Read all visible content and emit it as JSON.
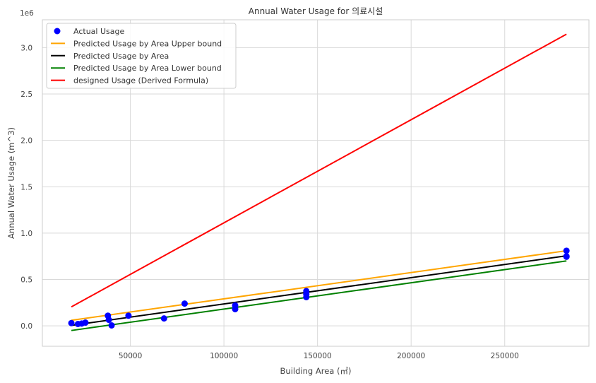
{
  "chart_data": {
    "type": "scatter",
    "title": "Annual Water Usage for 의료시설",
    "xlabel": "Building Area (㎡)",
    "ylabel": "Annual Water Usage (m^3)",
    "y_offset_label": "1e6",
    "xlim": [
      3000,
      295000
    ],
    "ylim": [
      -0.22,
      3.3
    ],
    "x_ticks": [
      50000,
      100000,
      150000,
      200000,
      250000
    ],
    "x_tick_labels": [
      "50000",
      "100000",
      "150000",
      "200000",
      "250000"
    ],
    "y_ticks": [
      0.0,
      0.5,
      1.0,
      1.5,
      2.0,
      2.5,
      3.0
    ],
    "y_tick_labels": [
      "0.0",
      "0.5",
      "1.0",
      "1.5",
      "2.0",
      "2.5",
      "3.0"
    ],
    "grid": true,
    "legend_position": "top-left",
    "series": [
      {
        "name": "Actual Usage",
        "kind": "scatter",
        "color": "#0000ff",
        "points": [
          [
            18500,
            0.03
          ],
          [
            22000,
            0.02
          ],
          [
            24000,
            0.025
          ],
          [
            26000,
            0.035
          ],
          [
            38000,
            0.11
          ],
          [
            38500,
            0.065
          ],
          [
            40000,
            0.005
          ],
          [
            49000,
            0.11
          ],
          [
            68000,
            0.08
          ],
          [
            79000,
            0.24
          ],
          [
            106000,
            0.22
          ],
          [
            106000,
            0.18
          ],
          [
            144000,
            0.375
          ],
          [
            144000,
            0.34
          ],
          [
            144000,
            0.31
          ],
          [
            283000,
            0.81
          ],
          [
            283000,
            0.745
          ],
          [
            283000,
            0.75
          ]
        ]
      },
      {
        "name": "Predicted Usage by Area Upper bound",
        "kind": "line",
        "color": "#ffa500",
        "points": [
          [
            18500,
            0.06
          ],
          [
            283000,
            0.81
          ]
        ]
      },
      {
        "name": "Predicted Usage by Area",
        "kind": "line",
        "color": "#000000",
        "points": [
          [
            18500,
            0.005
          ],
          [
            283000,
            0.755
          ]
        ]
      },
      {
        "name": "Predicted Usage by Area Lower bound",
        "kind": "line",
        "color": "#008000",
        "points": [
          [
            18500,
            -0.05
          ],
          [
            283000,
            0.7
          ]
        ]
      },
      {
        "name": "designed Usage (Derived Formula)",
        "kind": "line",
        "color": "#ff0000",
        "points": [
          [
            18500,
            0.205
          ],
          [
            283000,
            3.145
          ]
        ]
      }
    ]
  }
}
